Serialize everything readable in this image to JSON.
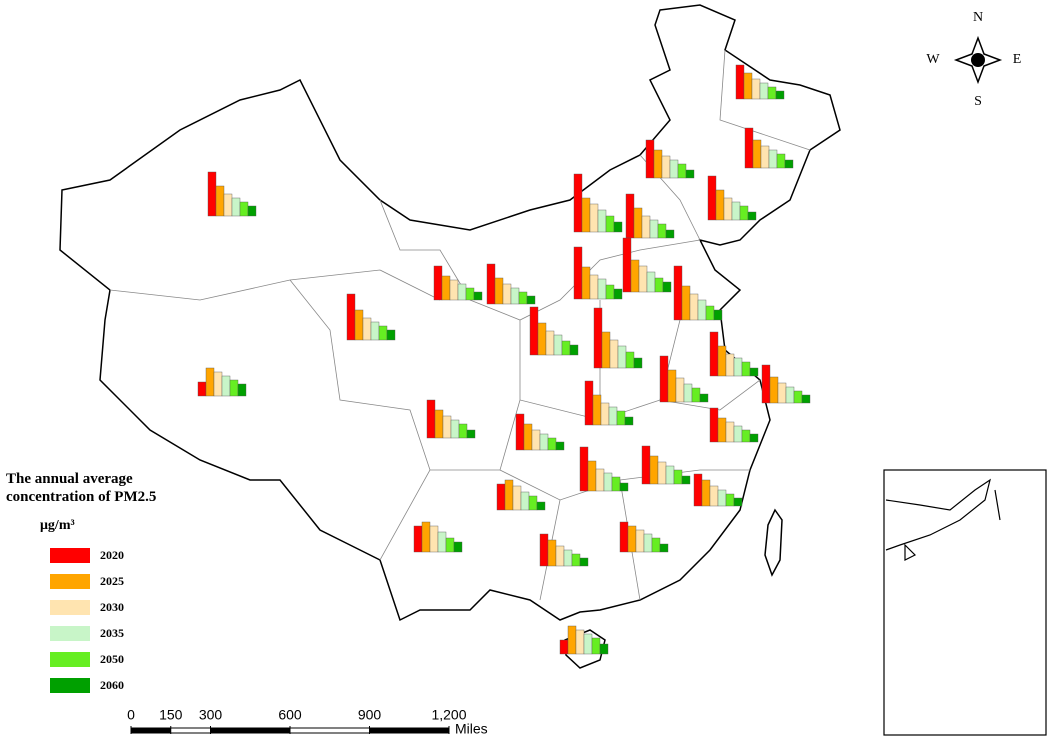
{
  "legend": {
    "title": "The annual average concentration of PM2.5",
    "unit": "μg/m³",
    "years": [
      {
        "label": "2020",
        "color": "#ff0000"
      },
      {
        "label": "2025",
        "color": "#ffa500"
      },
      {
        "label": "2030",
        "color": "#ffe4b0"
      },
      {
        "label": "2035",
        "color": "#c8f5c8"
      },
      {
        "label": "2050",
        "color": "#66ee22"
      },
      {
        "label": "2060",
        "color": "#00a000"
      }
    ]
  },
  "compass": {
    "north": "N",
    "south": "S",
    "east": "E",
    "west": "W"
  },
  "scale_bar": {
    "unit": "Miles",
    "ticks": [
      0,
      150,
      300,
      600,
      900,
      {
        "value": 1200,
        "label": "1,200"
      }
    ]
  },
  "charts": [
    {
      "values": [
        44,
        30,
        22,
        18,
        14,
        10
      ]
    },
    {
      "values": [
        14,
        28,
        24,
        20,
        16,
        12
      ]
    },
    {
      "values": [
        46,
        30,
        22,
        18,
        14,
        10
      ]
    },
    {
      "values": [
        34,
        24,
        20,
        16,
        12,
        8
      ]
    },
    {
      "values": [
        40,
        26,
        20,
        16,
        12,
        8
      ]
    },
    {
      "values": [
        52,
        32,
        24,
        20,
        14,
        10
      ]
    },
    {
      "values": [
        34,
        26,
        20,
        16,
        12,
        8
      ]
    },
    {
      "values": [
        40,
        28,
        22,
        18,
        14,
        8
      ]
    },
    {
      "values": [
        38,
        28,
        22,
        18,
        14,
        8
      ]
    },
    {
      "values": [
        44,
        30,
        22,
        18,
        14,
        8
      ]
    },
    {
      "values": [
        58,
        34,
        28,
        22,
        16,
        10
      ]
    },
    {
      "values": [
        44,
        30,
        22,
        18,
        14,
        8
      ]
    },
    {
      "values": [
        54,
        32,
        26,
        20,
        14,
        10
      ]
    },
    {
      "values": [
        54,
        34,
        26,
        20,
        14,
        10
      ]
    },
    {
      "values": [
        48,
        32,
        24,
        20,
        14,
        10
      ]
    },
    {
      "values": [
        60,
        36,
        28,
        22,
        16,
        10
      ]
    },
    {
      "values": [
        44,
        30,
        22,
        18,
        14,
        8
      ]
    },
    {
      "values": [
        46,
        32,
        24,
        18,
        14,
        8
      ]
    },
    {
      "values": [
        38,
        26,
        20,
        16,
        12,
        8
      ]
    },
    {
      "values": [
        44,
        30,
        22,
        18,
        14,
        8
      ]
    },
    {
      "values": [
        34,
        24,
        20,
        16,
        12,
        8
      ]
    },
    {
      "values": [
        38,
        28,
        22,
        18,
        14,
        8
      ]
    },
    {
      "values": [
        36,
        26,
        20,
        16,
        12,
        8
      ]
    },
    {
      "values": [
        44,
        30,
        22,
        18,
        14,
        8
      ]
    },
    {
      "values": [
        38,
        28,
        22,
        18,
        14,
        8
      ]
    },
    {
      "values": [
        32,
        26,
        20,
        16,
        12,
        8
      ]
    },
    {
      "values": [
        26,
        30,
        24,
        18,
        14,
        8
      ]
    },
    {
      "values": [
        26,
        30,
        26,
        20,
        14,
        10
      ]
    },
    {
      "values": [
        32,
        26,
        20,
        16,
        12,
        8
      ]
    },
    {
      "values": [
        30,
        26,
        22,
        18,
        14,
        8
      ]
    },
    {
      "values": [
        14,
        28,
        24,
        20,
        16,
        10
      ]
    }
  ]
}
